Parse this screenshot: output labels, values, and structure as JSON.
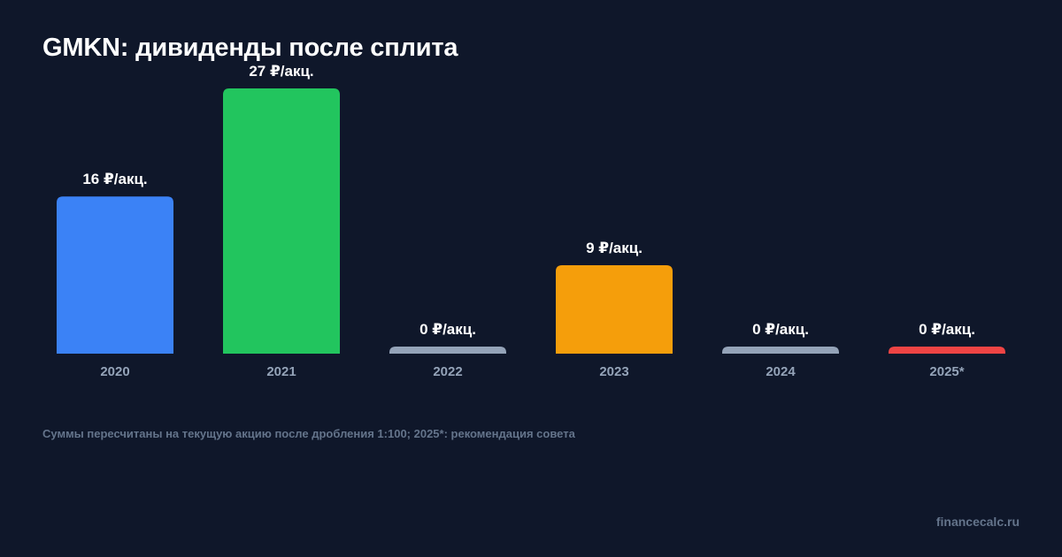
{
  "chart_data": {
    "type": "bar",
    "title": "GMKN: дивиденды после сплита",
    "categories": [
      "2020",
      "2021",
      "2022",
      "2023",
      "2024",
      "2025*"
    ],
    "values": [
      16,
      27,
      0,
      9,
      0,
      0
    ],
    "value_labels": [
      "16 ₽/акц.",
      "27 ₽/акц.",
      "0 ₽/акц.",
      "9 ₽/акц.",
      "0 ₽/акц.",
      "0 ₽/акц."
    ],
    "colors": [
      "#3b82f6",
      "#22c55e",
      "#94a3b8",
      "#f59e0b",
      "#94a3b8",
      "#ef4444"
    ],
    "ylim": [
      0,
      27
    ],
    "grid": false,
    "legend": "none",
    "xlabel": "",
    "ylabel": ""
  },
  "footnote": "Суммы пересчитаны на текущую акцию после дробления 1:100; 2025*: рекомендация совета",
  "source": "financecalc.ru",
  "colors": {
    "background": "#0f172a",
    "title": "#ffffff",
    "tick": "#94a3b8",
    "muted": "#64748b"
  }
}
